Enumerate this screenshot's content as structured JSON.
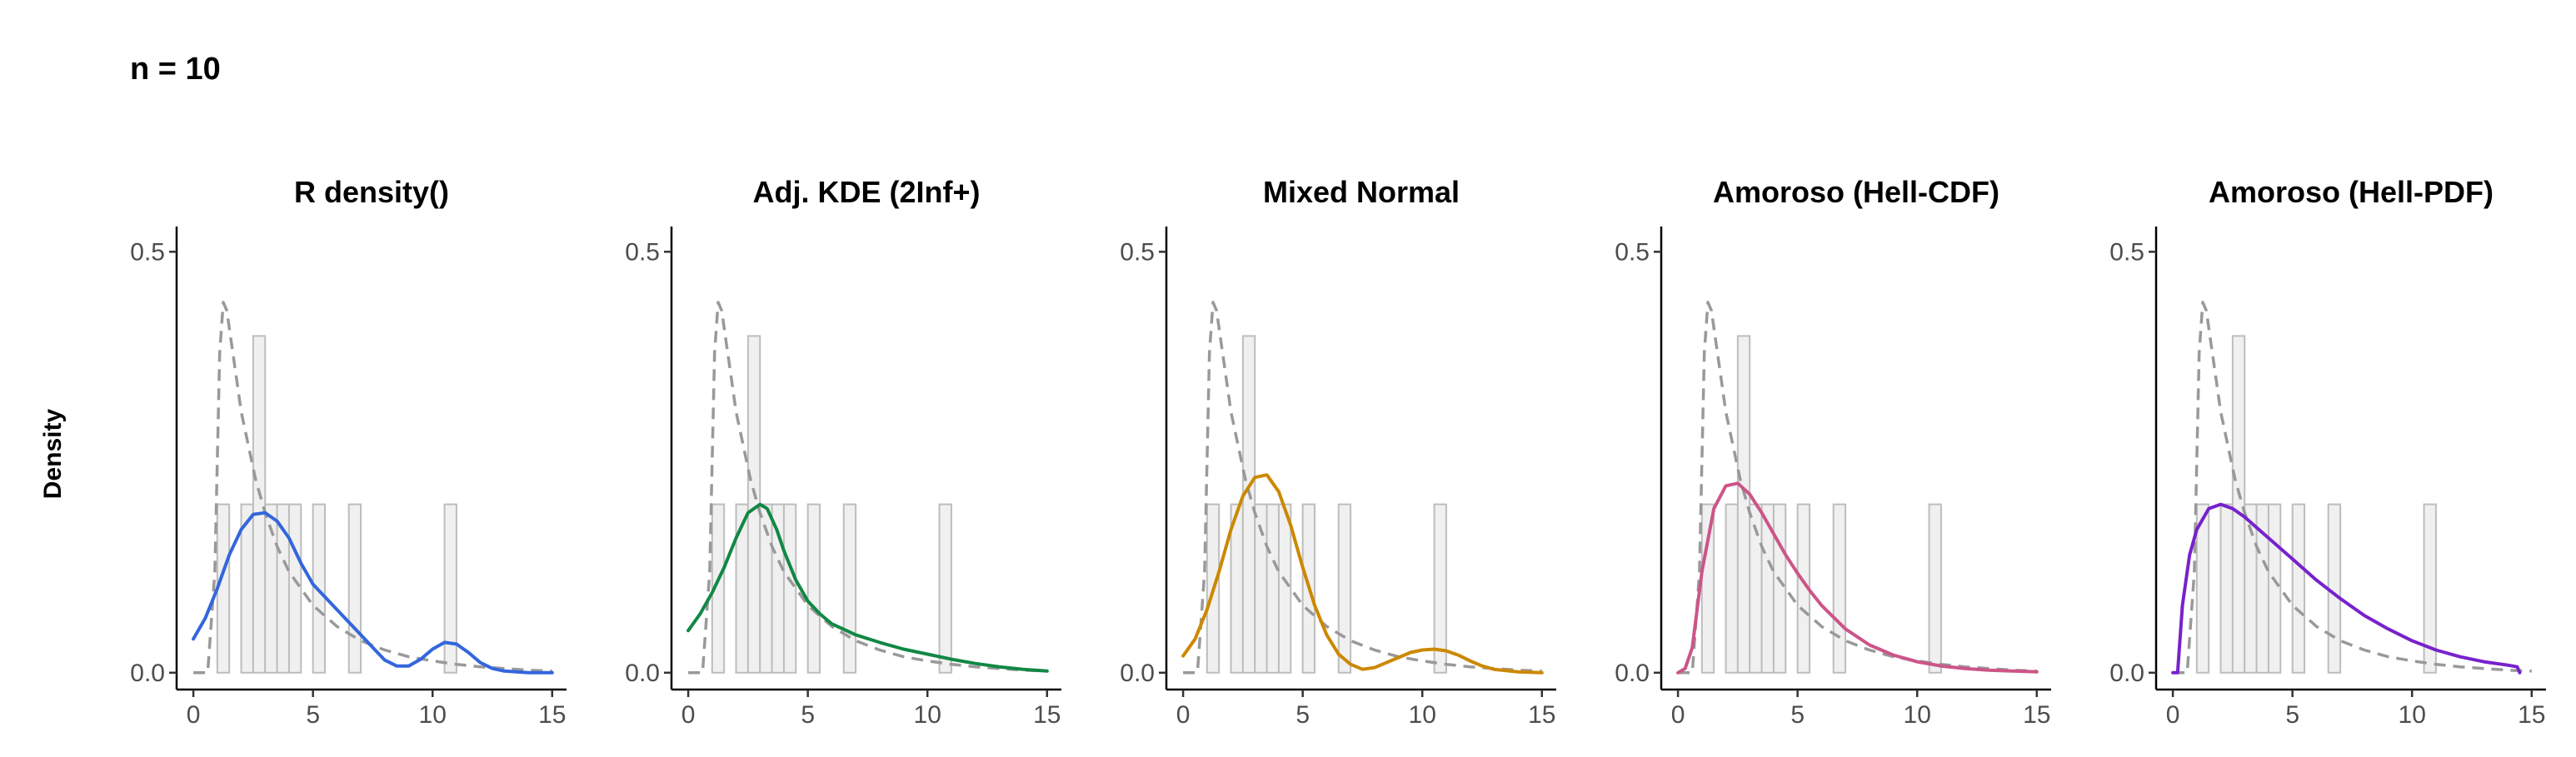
{
  "header": {
    "title": "n = 10"
  },
  "ylabel": "Density",
  "chart_data": {
    "type": "histogram+line",
    "x_ticks": [
      0,
      5,
      10,
      15
    ],
    "y_ticks": [
      0.0,
      0.5
    ],
    "y_tick_labels": [
      "0.0",
      "0.5"
    ],
    "xlim": [
      -0.7,
      15.6
    ],
    "ylim": [
      -0.02,
      0.53
    ],
    "grid": false,
    "histogram": {
      "bin_width": 0.5,
      "bars": [
        {
          "x": 1.0,
          "density": 0.2
        },
        {
          "x": 2.0,
          "density": 0.2
        },
        {
          "x": 2.5,
          "density": 0.4
        },
        {
          "x": 3.0,
          "density": 0.2
        },
        {
          "x": 3.5,
          "density": 0.2
        },
        {
          "x": 4.0,
          "density": 0.2
        },
        {
          "x": 5.0,
          "density": 0.2
        },
        {
          "x": 6.5,
          "density": 0.2
        },
        {
          "x": 10.5,
          "density": 0.2
        }
      ]
    },
    "true_density": {
      "style": "dashed",
      "color": "#999999",
      "x": [
        0,
        0.6,
        0.9,
        1.1,
        1.25,
        1.4,
        1.6,
        1.8,
        2.0,
        2.3,
        2.6,
        3.0,
        3.5,
        4.0,
        4.5,
        5.0,
        6.0,
        7.0,
        8.0,
        9.0,
        10.0,
        11.0,
        12.0,
        13.0,
        14.0,
        15.0
      ],
      "y": [
        0,
        0.0,
        0.12,
        0.38,
        0.44,
        0.43,
        0.39,
        0.35,
        0.31,
        0.27,
        0.23,
        0.19,
        0.15,
        0.12,
        0.1,
        0.08,
        0.055,
        0.038,
        0.027,
        0.019,
        0.014,
        0.01,
        0.007,
        0.005,
        0.003,
        0.002
      ]
    },
    "panels": [
      {
        "title": "R density()",
        "color": "#3366dd",
        "x": [
          0,
          0.5,
          1.0,
          1.5,
          2.0,
          2.5,
          3.0,
          3.5,
          4.0,
          4.5,
          5.0,
          5.5,
          6.0,
          6.5,
          7.0,
          7.5,
          8.0,
          8.5,
          9.0,
          9.5,
          10.0,
          10.5,
          11.0,
          11.5,
          12.0,
          12.5,
          13.0,
          14.0,
          15.0
        ],
        "y": [
          0.04,
          0.065,
          0.1,
          0.14,
          0.17,
          0.188,
          0.19,
          0.18,
          0.16,
          0.13,
          0.105,
          0.09,
          0.075,
          0.06,
          0.045,
          0.03,
          0.015,
          0.008,
          0.008,
          0.016,
          0.028,
          0.036,
          0.034,
          0.024,
          0.012,
          0.005,
          0.002,
          0.0,
          0.0
        ]
      },
      {
        "title": "Adj. KDE (2Inf+)",
        "color": "#118844",
        "x": [
          0,
          0.5,
          1.0,
          1.5,
          2.0,
          2.5,
          3.0,
          3.3,
          3.7,
          4.0,
          4.5,
          5.0,
          5.5,
          6.0,
          7.0,
          8.0,
          9.0,
          10.0,
          11.0,
          12.0,
          13.0,
          14.0,
          15.0
        ],
        "y": [
          0.05,
          0.07,
          0.095,
          0.125,
          0.16,
          0.19,
          0.2,
          0.195,
          0.17,
          0.145,
          0.11,
          0.085,
          0.07,
          0.058,
          0.045,
          0.036,
          0.028,
          0.022,
          0.016,
          0.011,
          0.007,
          0.004,
          0.002
        ]
      },
      {
        "title": "Mixed Normal",
        "color": "#cc8800",
        "x": [
          0,
          0.5,
          1.0,
          1.5,
          2.0,
          2.5,
          3.0,
          3.5,
          4.0,
          4.5,
          5.0,
          5.5,
          6.0,
          6.5,
          7.0,
          7.5,
          8.0,
          8.5,
          9.0,
          9.5,
          10.0,
          10.5,
          11.0,
          11.5,
          12.0,
          12.5,
          13.0,
          14.0,
          15.0
        ],
        "y": [
          0.02,
          0.04,
          0.075,
          0.12,
          0.17,
          0.21,
          0.232,
          0.235,
          0.215,
          0.175,
          0.125,
          0.08,
          0.045,
          0.022,
          0.01,
          0.004,
          0.006,
          0.012,
          0.018,
          0.024,
          0.027,
          0.028,
          0.026,
          0.021,
          0.014,
          0.008,
          0.004,
          0.001,
          0.0
        ]
      },
      {
        "title": "Amoroso (Hell-CDF)",
        "color": "#cc5588",
        "x": [
          0,
          0.3,
          0.6,
          1.0,
          1.5,
          2.0,
          2.5,
          3.0,
          3.5,
          4.0,
          4.5,
          5.0,
          5.5,
          6.0,
          7.0,
          8.0,
          9.0,
          10.0,
          11.0,
          12.0,
          13.0,
          14.0,
          15.0
        ],
        "y": [
          0,
          0.005,
          0.03,
          0.12,
          0.195,
          0.222,
          0.225,
          0.212,
          0.19,
          0.165,
          0.14,
          0.118,
          0.098,
          0.08,
          0.052,
          0.033,
          0.021,
          0.013,
          0.008,
          0.005,
          0.003,
          0.002,
          0.001
        ]
      },
      {
        "title": "Amoroso (Hell-PDF)",
        "color": "#7722cc",
        "x": [
          0,
          0.2,
          0.4,
          0.7,
          1.0,
          1.5,
          2.0,
          2.5,
          3.0,
          4.0,
          5.0,
          6.0,
          7.0,
          8.0,
          9.0,
          10.0,
          11.0,
          12.0,
          13.0,
          14.0,
          14.4,
          14.5
        ],
        "y": [
          0,
          0.0,
          0.08,
          0.14,
          0.17,
          0.195,
          0.2,
          0.195,
          0.185,
          0.16,
          0.135,
          0.11,
          0.088,
          0.068,
          0.052,
          0.038,
          0.027,
          0.019,
          0.013,
          0.009,
          0.007,
          0.0
        ]
      }
    ]
  }
}
